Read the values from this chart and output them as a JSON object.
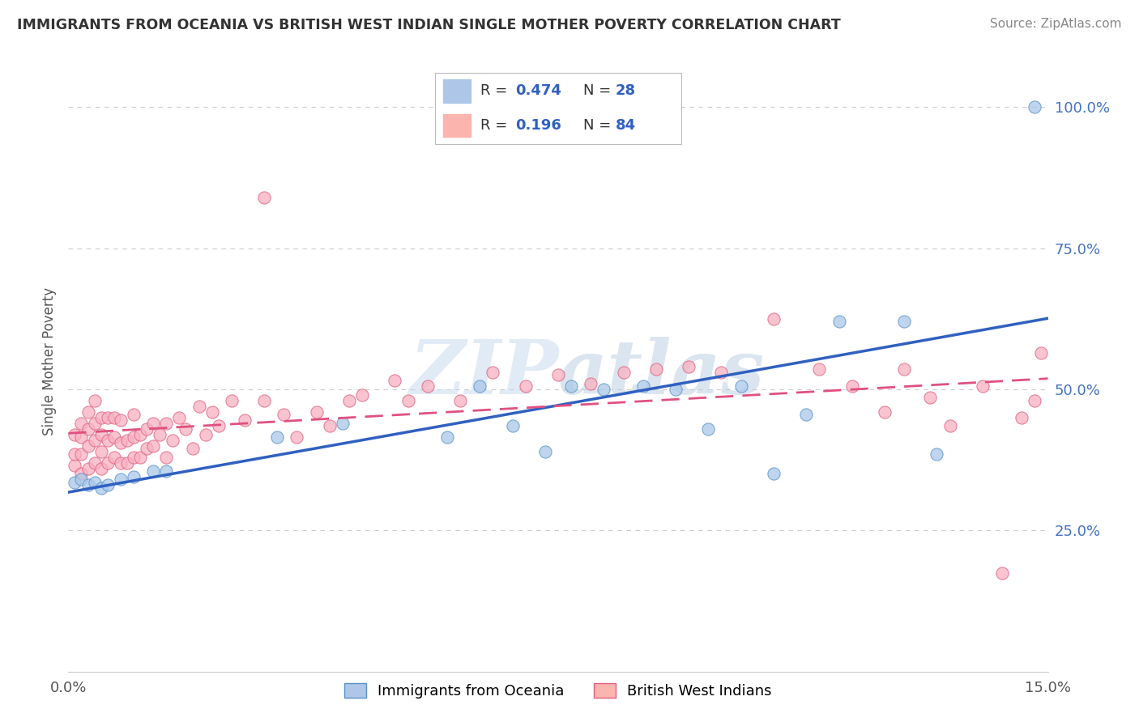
{
  "title": "IMMIGRANTS FROM OCEANIA VS BRITISH WEST INDIAN SINGLE MOTHER POVERTY CORRELATION CHART",
  "source": "Source: ZipAtlas.com",
  "ylabel": "Single Mother Poverty",
  "ytick_labels": [
    "25.0%",
    "50.0%",
    "75.0%",
    "100.0%"
  ],
  "ytick_values": [
    0.25,
    0.5,
    0.75,
    1.0
  ],
  "xtick_labels": [
    "0.0%",
    "15.0%"
  ],
  "xtick_values": [
    0.0,
    0.15
  ],
  "xlim": [
    0.0,
    0.15
  ],
  "ylim": [
    0.0,
    1.1
  ],
  "watermark": "ZIPAtlas",
  "legend_R1": "R = 0.474",
  "legend_N1": "N = 28",
  "legend_R2": "R = 0.196",
  "legend_N2": "N = 84",
  "blue_scatter_color": "#a8c8e8",
  "blue_scatter_edge": "#5a90c8",
  "pink_scatter_color": "#f8b0c0",
  "pink_scatter_edge": "#e06080",
  "trend_blue_color": "#3060c0",
  "trend_pink_color": "#e05080",
  "ytick_color": "#4472c4",
  "text_color": "#333333",
  "source_color": "#888888",
  "grid_color": "#cccccc",
  "legend_blue_fill": "#aec7e8",
  "legend_pink_fill": "#fbb4ae",
  "oceania_x": [
    0.001,
    0.002,
    0.003,
    0.004,
    0.005,
    0.006,
    0.008,
    0.01,
    0.013,
    0.015,
    0.032,
    0.042,
    0.058,
    0.063,
    0.068,
    0.073,
    0.077,
    0.082,
    0.088,
    0.093,
    0.098,
    0.103,
    0.108,
    0.113,
    0.118,
    0.128,
    0.133,
    0.148
  ],
  "oceania_y": [
    0.335,
    0.34,
    0.33,
    0.335,
    0.325,
    0.33,
    0.34,
    0.345,
    0.355,
    0.355,
    0.415,
    0.44,
    0.415,
    0.505,
    0.435,
    0.39,
    0.505,
    0.5,
    0.505,
    0.5,
    0.43,
    0.505,
    0.35,
    0.455,
    0.62,
    0.62,
    0.385,
    1.0
  ],
  "bwi_x": [
    0.001,
    0.001,
    0.001,
    0.002,
    0.002,
    0.002,
    0.002,
    0.003,
    0.003,
    0.003,
    0.003,
    0.004,
    0.004,
    0.004,
    0.004,
    0.005,
    0.005,
    0.005,
    0.005,
    0.006,
    0.006,
    0.006,
    0.007,
    0.007,
    0.007,
    0.008,
    0.008,
    0.008,
    0.009,
    0.009,
    0.01,
    0.01,
    0.01,
    0.011,
    0.011,
    0.012,
    0.012,
    0.013,
    0.013,
    0.014,
    0.015,
    0.015,
    0.016,
    0.017,
    0.018,
    0.019,
    0.02,
    0.021,
    0.022,
    0.023,
    0.025,
    0.027,
    0.03,
    0.03,
    0.033,
    0.035,
    0.038,
    0.04,
    0.043,
    0.045,
    0.05,
    0.052,
    0.055,
    0.06,
    0.065,
    0.07,
    0.075,
    0.08,
    0.085,
    0.09,
    0.095,
    0.1,
    0.108,
    0.115,
    0.12,
    0.125,
    0.128,
    0.132,
    0.135,
    0.14,
    0.143,
    0.146,
    0.148,
    0.149
  ],
  "bwi_y": [
    0.365,
    0.385,
    0.42,
    0.35,
    0.385,
    0.415,
    0.44,
    0.36,
    0.4,
    0.43,
    0.46,
    0.37,
    0.41,
    0.44,
    0.48,
    0.36,
    0.39,
    0.42,
    0.45,
    0.37,
    0.41,
    0.45,
    0.38,
    0.415,
    0.45,
    0.37,
    0.405,
    0.445,
    0.37,
    0.41,
    0.38,
    0.415,
    0.455,
    0.38,
    0.42,
    0.395,
    0.43,
    0.4,
    0.44,
    0.42,
    0.38,
    0.44,
    0.41,
    0.45,
    0.43,
    0.395,
    0.47,
    0.42,
    0.46,
    0.435,
    0.48,
    0.445,
    0.48,
    0.84,
    0.455,
    0.415,
    0.46,
    0.435,
    0.48,
    0.49,
    0.515,
    0.48,
    0.505,
    0.48,
    0.53,
    0.505,
    0.525,
    0.51,
    0.53,
    0.535,
    0.54,
    0.53,
    0.625,
    0.535,
    0.505,
    0.46,
    0.535,
    0.485,
    0.435,
    0.505,
    0.175,
    0.45,
    0.48,
    0.565
  ]
}
